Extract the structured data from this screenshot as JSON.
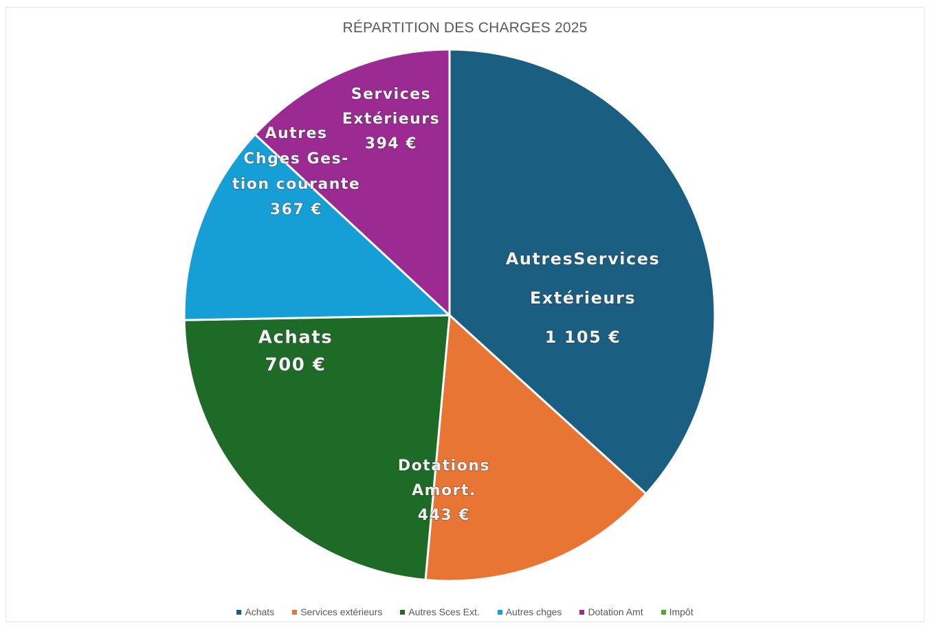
{
  "chart_data": {
    "type": "pie",
    "title": "RÉPARTITION DES CHARGES 2025",
    "slices": [
      {
        "label_lines": [
          "AutresServices",
          "Extérieurs",
          "1 105 €"
        ],
        "value": 1105,
        "color": "#1a5e81"
      },
      {
        "label_lines": [
          "Dotations",
          "Amort.",
          "443 €"
        ],
        "value": 443,
        "color": "#e87534"
      },
      {
        "label_lines": [
          "Achats",
          "700 €"
        ],
        "value": 700,
        "color": "#1e6b28"
      },
      {
        "label_lines": [
          "Autres",
          "Chges Ges-",
          "tion courante",
          "367 €"
        ],
        "value": 367,
        "color": "#169fd6"
      },
      {
        "label_lines": [
          "Services",
          "Extérieurs",
          "394 €"
        ],
        "value": 394,
        "color": "#9c2a93"
      }
    ],
    "legend": [
      {
        "label": "Achats",
        "color": "#1a5e81"
      },
      {
        "label": "Services extérieurs",
        "color": "#e87534"
      },
      {
        "label": "Autres Sces Ext.",
        "color": "#1e6b28"
      },
      {
        "label": "Autres chges",
        "color": "#169fd6"
      },
      {
        "label": "Dotation Amt",
        "color": "#9c2a93"
      },
      {
        "label": "Impôt",
        "color": "#4ea72e"
      }
    ],
    "legend_position": "bottom"
  }
}
